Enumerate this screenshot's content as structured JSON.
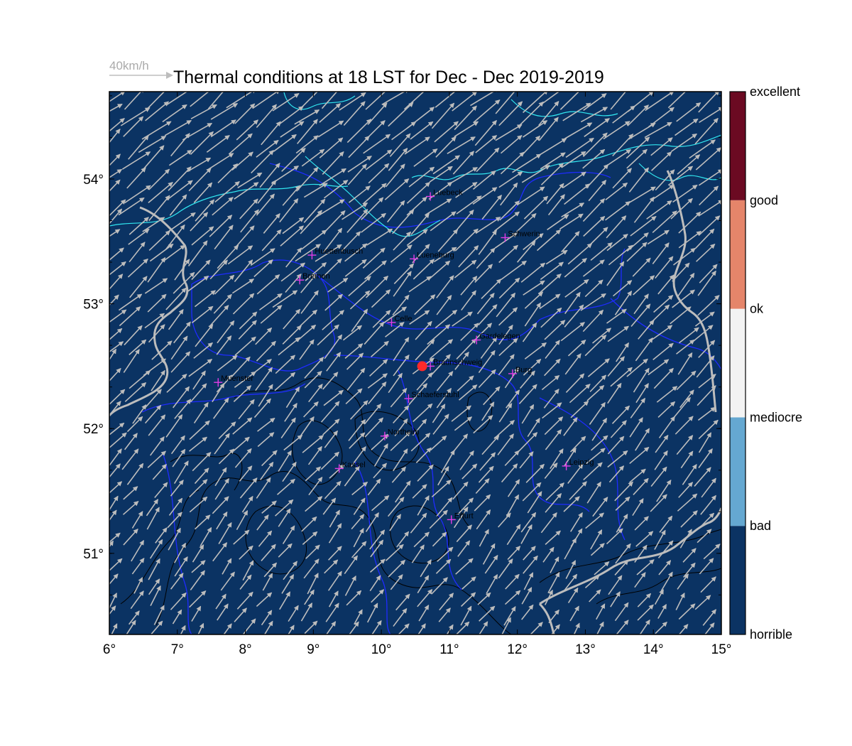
{
  "title": "Thermal conditions at 18 LST for Dec - Dec  2019-2019",
  "wind_scale": {
    "label": "40km/h"
  },
  "map": {
    "lon_range": [
      6,
      15
    ],
    "lat_range": [
      50.35,
      54.7
    ],
    "x_ticks": [
      {
        "value": 6,
        "label": "6°"
      },
      {
        "value": 7,
        "label": "7°"
      },
      {
        "value": 8,
        "label": "8°"
      },
      {
        "value": 9,
        "label": "9°"
      },
      {
        "value": 10,
        "label": "10°"
      },
      {
        "value": 11,
        "label": "11°"
      },
      {
        "value": 12,
        "label": "12°"
      },
      {
        "value": 13,
        "label": "13°"
      },
      {
        "value": 14,
        "label": "14°"
      },
      {
        "value": 15,
        "label": "15°"
      }
    ],
    "y_ticks": [
      {
        "value": 51,
        "label": "51°"
      },
      {
        "value": 52,
        "label": "52°"
      },
      {
        "value": 53,
        "label": "53°"
      },
      {
        "value": 54,
        "label": "54°"
      }
    ],
    "background_color": "#0b3363",
    "coast_color": "#31e7f0",
    "border_color": "#bdbdbd",
    "region_color": "#1f2bff",
    "cities": [
      {
        "name": "Luebeck",
        "lon": 10.72,
        "lat": 53.86
      },
      {
        "name": "Schwerin",
        "lon": 11.82,
        "lat": 53.53
      },
      {
        "name": "Huettenbusch",
        "lon": 8.98,
        "lat": 53.39
      },
      {
        "name": "Lueneburg",
        "lon": 10.48,
        "lat": 53.36
      },
      {
        "name": "Bremen",
        "lon": 8.8,
        "lat": 53.19
      },
      {
        "name": "Celle",
        "lon": 10.15,
        "lat": 52.85
      },
      {
        "name": "Gardelegen",
        "lon": 11.4,
        "lat": 52.71
      },
      {
        "name": "Braunschweig",
        "lon": 10.72,
        "lat": 52.5
      },
      {
        "name": "Burg",
        "lon": 11.93,
        "lat": 52.44
      },
      {
        "name": "Muenster",
        "lon": 7.6,
        "lat": 52.37
      },
      {
        "name": "Schaeferstuhl",
        "lon": 10.4,
        "lat": 52.24
      },
      {
        "name": "Northeim",
        "lon": 10.05,
        "lat": 51.94
      },
      {
        "name": "Kassel",
        "lon": 9.38,
        "lat": 51.68
      },
      {
        "name": "Leipzig",
        "lon": 12.72,
        "lat": 51.7
      },
      {
        "name": "Erfurt",
        "lon": 11.03,
        "lat": 51.27
      }
    ],
    "site_marker": {
      "lon": 10.6,
      "lat": 52.5,
      "color": "#ff2a2a"
    },
    "wind": {
      "color": "#bdbdbd",
      "direction": "from south-west"
    }
  },
  "colorbar": {
    "classes": [
      {
        "label": "horrible",
        "color": "#0b3363"
      },
      {
        "label": "bad",
        "color": "#65a8d1"
      },
      {
        "label": "mediocre",
        "color": "#f3f3f3"
      },
      {
        "label": "ok",
        "color": "#e5856a"
      },
      {
        "label": "good",
        "color": "#6b0a22"
      }
    ],
    "tick_labels": [
      "horrible",
      "bad",
      "mediocre",
      "ok",
      "good",
      "excellent"
    ]
  }
}
